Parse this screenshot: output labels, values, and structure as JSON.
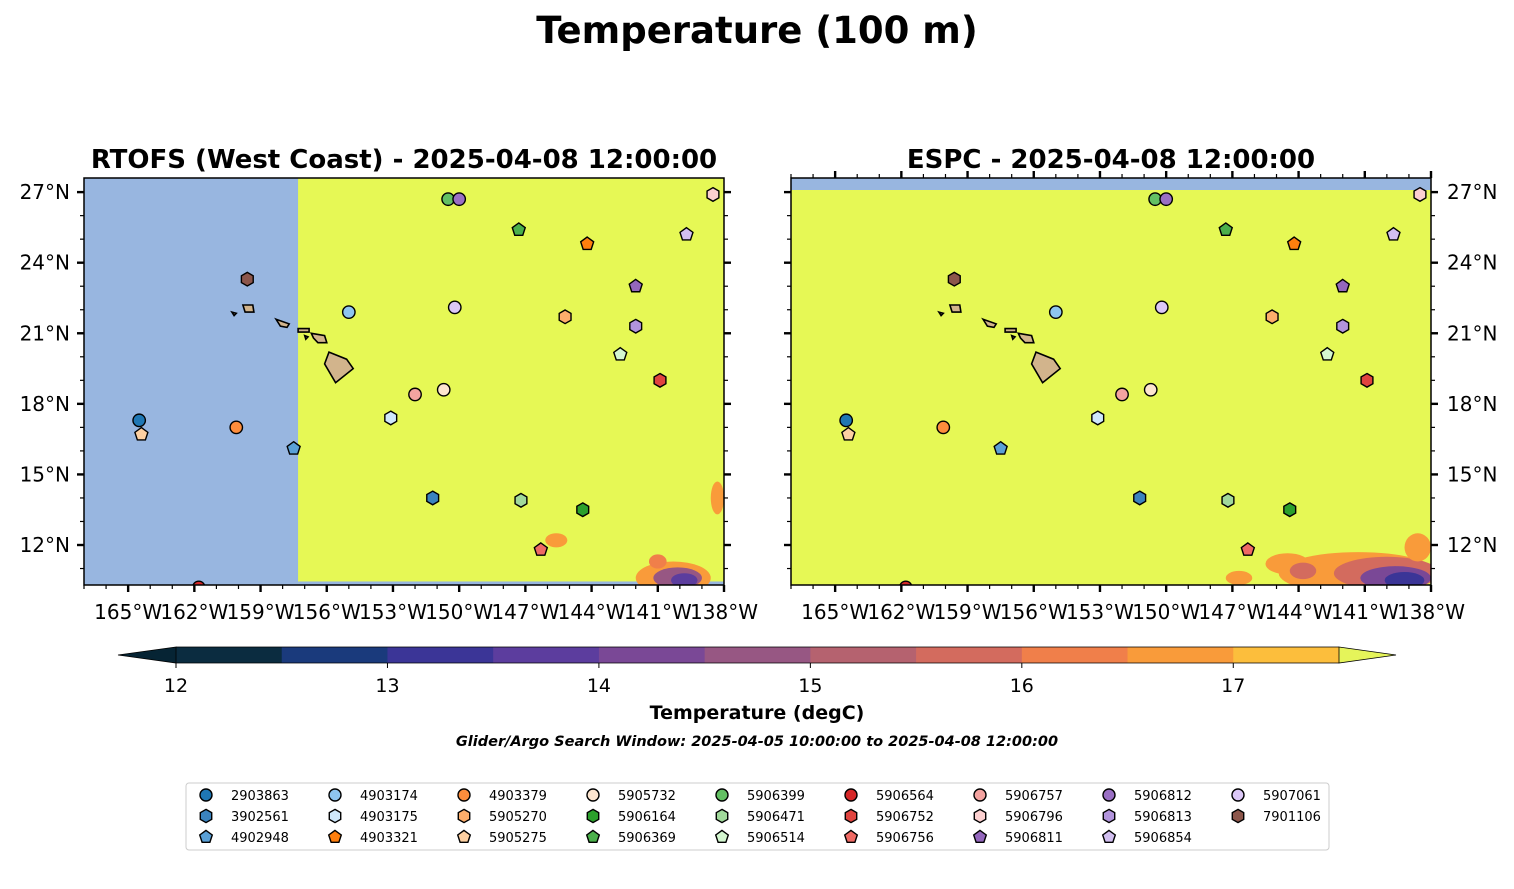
{
  "figure": {
    "title": "Temperature (100 m)",
    "subtitle": "Glider/Argo Search Window: 2025-04-05 10:00:00 to 2025-04-08 12:00:00"
  },
  "panels": [
    {
      "title": "RTOFS (West Coast) - 2025-04-08 12:00:00",
      "domain_edge_lon": -157.3
    },
    {
      "title": "ESPC - 2025-04-08 12:00:00"
    }
  ],
  "map_extent": {
    "lon_min": -167,
    "lon_max": -138,
    "lat_min": 10.3,
    "lat_max": 27.6
  },
  "axes": {
    "x_ticks": [
      "165°W",
      "162°W",
      "159°W",
      "156°W",
      "153°W",
      "150°W",
      "147°W",
      "144°W",
      "141°W",
      "138°W"
    ],
    "x_tick_values": [
      -165,
      -162,
      -159,
      -156,
      -153,
      -150,
      -147,
      -144,
      -141,
      -138
    ],
    "y_ticks": [
      "12°N",
      "15°N",
      "18°N",
      "21°N",
      "24°N",
      "27°N"
    ],
    "y_tick_values": [
      12,
      15,
      18,
      21,
      24,
      27
    ]
  },
  "colorbar": {
    "label": "Temperature (degC)",
    "ticks": [
      "12",
      "13",
      "14",
      "15",
      "16",
      "17"
    ],
    "tick_values": [
      12,
      13,
      14,
      15,
      16,
      17
    ],
    "min": 12,
    "max": 17.5,
    "extend": "both",
    "colors": [
      "#0b2c40",
      "#1a3a7c",
      "#3b3597",
      "#5c3d9e",
      "#7a4896",
      "#975783",
      "#b5626f",
      "#d36b5e",
      "#f07f4a",
      "#f99b3a",
      "#fcbe3c",
      "#e5f45a"
    ],
    "under_color": "#062434",
    "over_color": "#e5f45a"
  },
  "colors": {
    "no_data": "#98b6e0",
    "warm": "#e6f855",
    "land": "#d2b48c"
  },
  "floats": [
    {
      "id": "2903863",
      "marker": "circle",
      "color": "#1f77b4",
      "lon": -164.5,
      "lat": 17.3
    },
    {
      "id": "3902561",
      "marker": "hexagon",
      "color": "#3b83be",
      "lon": -151.2,
      "lat": 14.0
    },
    {
      "id": "4902948",
      "marker": "pentagon",
      "color": "#5aa0d6",
      "lon": -157.5,
      "lat": 16.1
    },
    {
      "id": "4903174",
      "marker": "circle",
      "color": "#8ec5ef",
      "lon": -155.0,
      "lat": 21.9
    },
    {
      "id": "4903175",
      "marker": "hexagon",
      "color": "#cfe8fb",
      "lon": -153.1,
      "lat": 17.4
    },
    {
      "id": "4903321",
      "marker": "pentagon",
      "color": "#ff7f0e",
      "lon": -144.2,
      "lat": 24.8
    },
    {
      "id": "4903379",
      "marker": "circle",
      "color": "#fd8d3c",
      "lon": -160.1,
      "lat": 17.0
    },
    {
      "id": "5905270",
      "marker": "hexagon",
      "color": "#fdae6b",
      "lon": -145.2,
      "lat": 21.7
    },
    {
      "id": "5905275",
      "marker": "pentagon",
      "color": "#fdd0a2",
      "lon": -164.4,
      "lat": 16.7
    },
    {
      "id": "5905732",
      "marker": "circle",
      "color": "#fde5cf",
      "lon": -150.7,
      "lat": 18.6
    },
    {
      "id": "5906164",
      "marker": "hexagon",
      "color": "#2ca02c",
      "lon": -144.4,
      "lat": 13.5
    },
    {
      "id": "5906369",
      "marker": "pentagon",
      "color": "#4bb04b",
      "lon": -147.3,
      "lat": 25.4
    },
    {
      "id": "5906399",
      "marker": "circle",
      "color": "#63c063",
      "lon": -150.5,
      "lat": 26.7
    },
    {
      "id": "5906471",
      "marker": "hexagon",
      "color": "#a1d99b",
      "lon": -147.2,
      "lat": 13.9
    },
    {
      "id": "5906514",
      "marker": "pentagon",
      "color": "#d4f7d0",
      "lon": -142.7,
      "lat": 20.1
    },
    {
      "id": "5906564",
      "marker": "circle",
      "color": "#d62728",
      "lon": -161.8,
      "lat": 10.2
    },
    {
      "id": "5906752",
      "marker": "hexagon",
      "color": "#e0443f",
      "lon": -140.9,
      "lat": 19.0
    },
    {
      "id": "5906756",
      "marker": "pentagon",
      "color": "#ef6a64",
      "lon": -146.3,
      "lat": 11.8
    },
    {
      "id": "5906757",
      "marker": "circle",
      "color": "#f4a3a0",
      "lon": -152.0,
      "lat": 18.4
    },
    {
      "id": "5906796",
      "marker": "hexagon",
      "color": "#fcd0d0",
      "lon": -138.5,
      "lat": 26.9
    },
    {
      "id": "5906811",
      "marker": "pentagon",
      "color": "#9467bd",
      "lon": -142.0,
      "lat": 23.0
    },
    {
      "id": "5906812",
      "marker": "circle",
      "color": "#9a6fc4",
      "lon": -150.0,
      "lat": 26.7
    },
    {
      "id": "5906813",
      "marker": "hexagon",
      "color": "#b294dc",
      "lon": -142.0,
      "lat": 21.3
    },
    {
      "id": "5906854",
      "marker": "pentagon",
      "color": "#d2bff0",
      "lon": -139.7,
      "lat": 25.2
    },
    {
      "id": "5907061",
      "marker": "circle",
      "color": "#dcc8f7",
      "lon": -150.2,
      "lat": 22.1
    },
    {
      "id": "7901106",
      "marker": "hexagon",
      "color": "#8c564b",
      "lon": -159.6,
      "lat": 23.3
    }
  ]
}
